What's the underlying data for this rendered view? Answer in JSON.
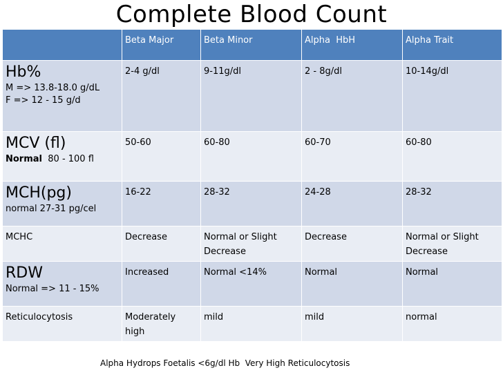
{
  "title": "Complete Blood Count",
  "columns": [
    "",
    "Beta Major",
    "Beta Minor",
    "Alpha  HbH",
    "Alpha Trait"
  ],
  "rows": [
    {
      "label": "Hb%",
      "sub_lines": [
        "M => 13.8-18.0 g/dL",
        "F => 12 - 15 g/d"
      ],
      "values": [
        "2-4 g/dl",
        "9-11g/dl",
        "2 - 8g/dl",
        "10-14g/dl"
      ]
    },
    {
      "label": "MCV (fl)",
      "sub_bold": "Normal",
      "sub_rest": "  80 - 100 fl",
      "values": [
        "50-60",
        "60-80",
        "60-70",
        "60-80"
      ]
    },
    {
      "label": "MCH(pg)",
      "sub": "normal 27-31 pg/cel",
      "values": [
        "16-22",
        "28-32",
        "24-28",
        "28-32"
      ]
    },
    {
      "label": "MCHC",
      "values": [
        "Decrease",
        "Normal or Slight Decrease",
        "Decrease",
        "Normal or Slight Decrease"
      ]
    },
    {
      "label": "RDW",
      "sub": "Normal => 11 - 15%",
      "values": [
        "Increased",
        "Normal <14%",
        "Normal",
        "Normal"
      ]
    },
    {
      "label": "Reticulocytosis",
      "values": [
        "Moderately high",
        "mild",
        "mild",
        "normal"
      ]
    }
  ],
  "footer": "Alpha Hydrops Foetalis <6g/dl Hb  Very High Reticulocytosis",
  "colors": {
    "header_bg": "#4f81bd",
    "row_dark": "#d0d8e8",
    "row_light": "#e9edf4"
  }
}
